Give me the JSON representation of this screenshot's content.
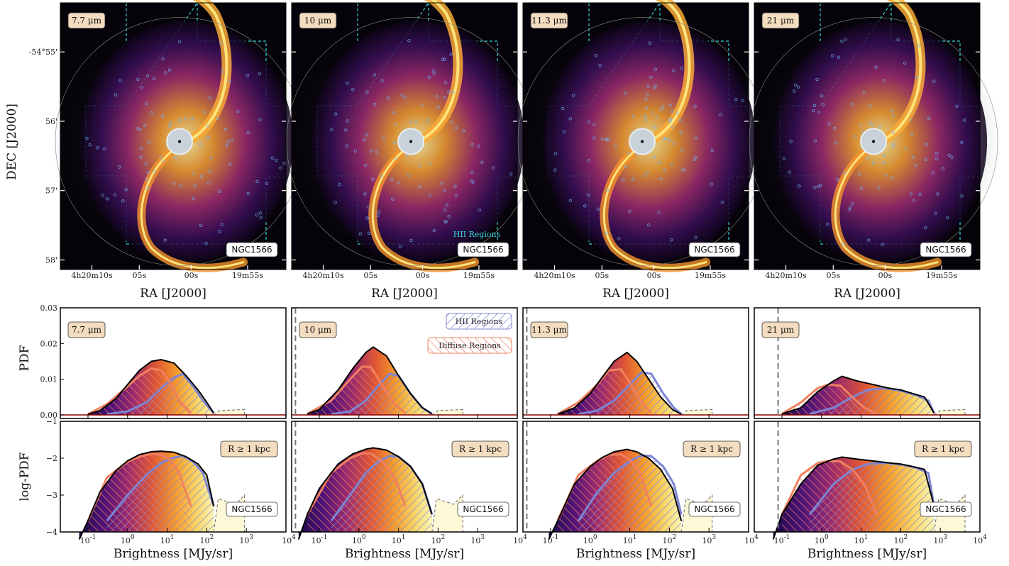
{
  "galaxy": "NGC1566",
  "ra_axis_title": "RA [J2000]",
  "dec_axis_title": "DEC [J2000]",
  "dec_ticks": [
    "-54°55'",
    "56'",
    "57'",
    "58'"
  ],
  "ra_ticks": [
    "4h20m10s",
    "05s",
    "00s",
    "19m55s"
  ],
  "pdf_axis_title": "PDF",
  "logpdf_axis_title": "log-PDF",
  "brightness_axis_title": "Brightness [MJy/sr]",
  "radius_label": "R ≥ 1 kpc",
  "legend": {
    "hii": "HII Regions",
    "diffuse": "Diffuse Regions"
  },
  "image_legend": "HII Regions",
  "colors": {
    "hii_line": "#7d86d4",
    "diffuse_line": "#f08060",
    "label_box": "#f3dcbf",
    "dashed_cyan": "#35d6d6"
  },
  "panels": [
    {
      "band": "7.7 μm",
      "vline": null
    },
    {
      "band": "10 μm",
      "vline": 0.025
    },
    {
      "band": "11.3 μm",
      "vline": 0.025
    },
    {
      "band": "21 μm",
      "vline": 0.08
    }
  ],
  "chart_data": [
    {
      "type": "area",
      "title": "",
      "xlabel": "Brightness [MJy/sr]",
      "ylabel": "PDF",
      "xscale": "log",
      "xlim": [
        0.02,
        10000
      ],
      "ylim": [
        -0.001,
        0.03
      ],
      "yticks": [
        0.0,
        0.01,
        0.02,
        0.03
      ],
      "xticks": [
        "10^-1",
        "10^0",
        "10^1",
        "10^2",
        "10^3",
        "10^4"
      ],
      "grid": false,
      "legend_position": "top-right",
      "panels": [
        {
          "band": "7.7 μm",
          "peak": {
            "x": 6.5,
            "y": 0.0155
          },
          "cutoff": 150,
          "series": [
            {
              "name": "All",
              "x": [
                0.1,
                0.2,
                0.5,
                1,
                2,
                4,
                7,
                15,
                30,
                60,
                100,
                150
              ],
              "values": [
                0.0002,
                0.0012,
                0.0045,
                0.0085,
                0.0125,
                0.015,
                0.0155,
                0.0145,
                0.011,
                0.007,
                0.0035,
                0.0005
              ]
            },
            {
              "name": "HII Regions",
              "x": [
                0.3,
                1,
                3,
                7,
                15,
                25,
                45,
                80,
                150
              ],
              "values": [
                0.0002,
                0.001,
                0.0035,
                0.0075,
                0.0105,
                0.0115,
                0.008,
                0.004,
                0.0005
              ]
            },
            {
              "name": "Diffuse Regions",
              "x": [
                0.1,
                0.3,
                1,
                2,
                4,
                7,
                12,
                20,
                40
              ],
              "values": [
                0.0002,
                0.003,
                0.008,
                0.011,
                0.013,
                0.0125,
                0.009,
                0.004,
                0.0005
              ]
            }
          ]
        },
        {
          "band": "10 μm",
          "peak": {
            "x": 2.3,
            "y": 0.019
          },
          "cutoff": 70,
          "series": [
            {
              "name": "All",
              "x": [
                0.05,
                0.1,
                0.3,
                0.7,
                1.5,
                2.3,
                5,
                10,
                20,
                40,
                70
              ],
              "values": [
                0.0003,
                0.0015,
                0.007,
                0.013,
                0.0175,
                0.019,
                0.0165,
                0.011,
                0.006,
                0.002,
                0.0003
              ]
            },
            {
              "name": "HII Regions",
              "x": [
                0.2,
                0.6,
                1.5,
                3,
                6,
                10,
                20,
                40,
                70
              ],
              "values": [
                0.0002,
                0.001,
                0.004,
                0.008,
                0.0115,
                0.011,
                0.006,
                0.002,
                0.0003
              ]
            },
            {
              "name": "Diffuse Regions",
              "x": [
                0.05,
                0.2,
                0.6,
                1.2,
                2,
                4,
                8,
                15
              ],
              "values": [
                0.0003,
                0.004,
                0.01,
                0.0135,
                0.0135,
                0.008,
                0.003,
                0.0005
              ]
            }
          ]
        },
        {
          "band": "11.3 μm",
          "peak": {
            "x": 8.5,
            "y": 0.0175
          },
          "cutoff": 200,
          "series": [
            {
              "name": "All",
              "x": [
                0.15,
                0.4,
                1,
                2,
                4,
                8.5,
                15,
                30,
                60,
                120,
                200
              ],
              "values": [
                0.0002,
                0.002,
                0.006,
                0.0105,
                0.015,
                0.0175,
                0.015,
                0.01,
                0.005,
                0.0015,
                0.0002
              ]
            },
            {
              "name": "HII Regions",
              "x": [
                0.5,
                1.5,
                4,
                10,
                20,
                35,
                70,
                130,
                200
              ],
              "values": [
                0.0002,
                0.0012,
                0.004,
                0.0085,
                0.012,
                0.0115,
                0.006,
                0.002,
                0.0003
              ]
            },
            {
              "name": "Diffuse Regions",
              "x": [
                0.15,
                0.5,
                1.5,
                3,
                6,
                10,
                18,
                35
              ],
              "values": [
                0.0002,
                0.0035,
                0.0085,
                0.0125,
                0.0128,
                0.009,
                0.004,
                0.0005
              ]
            }
          ]
        },
        {
          "band": "21 μm",
          "peak": {
            "x": 3.3,
            "y": 0.0108
          },
          "cutoff": 700,
          "series": [
            {
              "name": "All",
              "x": [
                0.1,
                0.3,
                0.8,
                2,
                3.3,
                8,
                20,
                50,
                100,
                200,
                400,
                700
              ],
              "values": [
                0.0003,
                0.002,
                0.0065,
                0.0095,
                0.0108,
                0.0095,
                0.0085,
                0.0075,
                0.007,
                0.006,
                0.005,
                0.0005
              ]
            },
            {
              "name": "HII Regions",
              "x": [
                0.5,
                2,
                6,
                15,
                40,
                100,
                250,
                500,
                700
              ],
              "values": [
                0.0003,
                0.002,
                0.005,
                0.007,
                0.0075,
                0.0068,
                0.0055,
                0.004,
                0.0005
              ]
            },
            {
              "name": "Diffuse Regions",
              "x": [
                0.1,
                0.3,
                0.8,
                1.5,
                3,
                6,
                12,
                25
              ],
              "values": [
                0.0003,
                0.0035,
                0.0075,
                0.0085,
                0.0082,
                0.005,
                0.002,
                0.0003
              ]
            }
          ]
        }
      ]
    },
    {
      "type": "area",
      "title": "",
      "xlabel": "Brightness [MJy/sr]",
      "ylabel": "log-PDF",
      "xscale": "log",
      "xlim": [
        0.02,
        10000
      ],
      "ylim": [
        -4,
        -1
      ],
      "yticks": [
        -1,
        -2,
        -3,
        -4
      ],
      "annotation": "R ≥ 1 kpc",
      "panels": [
        {
          "band": "7.7 μm",
          "peak": {
            "x": 6.5,
            "y": -1.81
          }
        },
        {
          "band": "10 μm",
          "peak": {
            "x": 2.3,
            "y": -1.72
          }
        },
        {
          "band": "11.3 μm",
          "peak": {
            "x": 8.5,
            "y": -1.76
          }
        },
        {
          "band": "21 μm",
          "peak": {
            "x": 3.3,
            "y": -1.97
          }
        }
      ]
    }
  ]
}
